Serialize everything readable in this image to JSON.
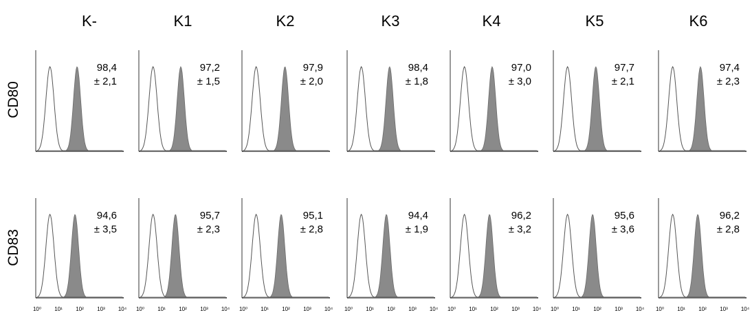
{
  "chart_data": {
    "type": "histogram-grid",
    "columns": [
      "K-",
      "K1",
      "K2",
      "K3",
      "K4",
      "K5",
      "K6"
    ],
    "rows": [
      "CD80",
      "CD83"
    ],
    "x_scale": "log",
    "xlim": [
      1,
      10000
    ],
    "x_tick_labels": [
      "10⁰",
      "10¹",
      "10²",
      "10³",
      "10⁴"
    ],
    "series": [
      "control (open histogram)",
      "marker (filled histogram)"
    ],
    "panels": [
      {
        "row": "CD80",
        "column": "K-",
        "value_label": "98,4",
        "sd_label": "± 2,1",
        "control_peak": 4,
        "marker_peak": 75
      },
      {
        "row": "CD80",
        "column": "K1",
        "value_label": "97,2",
        "sd_label": "± 1,5",
        "control_peak": 4,
        "marker_peak": 80
      },
      {
        "row": "CD80",
        "column": "K2",
        "value_label": "97,9",
        "sd_label": "± 2,0",
        "control_peak": 4,
        "marker_peak": 90
      },
      {
        "row": "CD80",
        "column": "K3",
        "value_label": "98,4",
        "sd_label": "± 1,8",
        "control_peak": 4,
        "marker_peak": 85
      },
      {
        "row": "CD80",
        "column": "K4",
        "value_label": "97,0",
        "sd_label": "± 3,0",
        "control_peak": 4,
        "marker_peak": 80
      },
      {
        "row": "CD80",
        "column": "K5",
        "value_label": "97,7",
        "sd_label": "± 2,1",
        "control_peak": 4,
        "marker_peak": 85
      },
      {
        "row": "CD80",
        "column": "K6",
        "value_label": "97,4",
        "sd_label": "± 2,3",
        "control_peak": 4,
        "marker_peak": 80
      },
      {
        "row": "CD83",
        "column": "K-",
        "value_label": "94,6",
        "sd_label": "± 3,5",
        "control_peak": 4,
        "marker_peak": 60
      },
      {
        "row": "CD83",
        "column": "K1",
        "value_label": "95,7",
        "sd_label": "± 2,3",
        "control_peak": 4,
        "marker_peak": 45
      },
      {
        "row": "CD83",
        "column": "K2",
        "value_label": "95,1",
        "sd_label": "± 2,8",
        "control_peak": 4,
        "marker_peak": 60
      },
      {
        "row": "CD83",
        "column": "K3",
        "value_label": "94,4",
        "sd_label": "± 1,9",
        "control_peak": 4,
        "marker_peak": 60
      },
      {
        "row": "CD83",
        "column": "K4",
        "value_label": "96,2",
        "sd_label": "± 3,2",
        "control_peak": 4,
        "marker_peak": 60
      },
      {
        "row": "CD83",
        "column": "K5",
        "value_label": "95,6",
        "sd_label": "± 3,6",
        "control_peak": 4,
        "marker_peak": 60
      },
      {
        "row": "CD83",
        "column": "K6",
        "value_label": "96,2",
        "sd_label": "± 2,8",
        "control_peak": 4,
        "marker_peak": 60
      }
    ]
  }
}
